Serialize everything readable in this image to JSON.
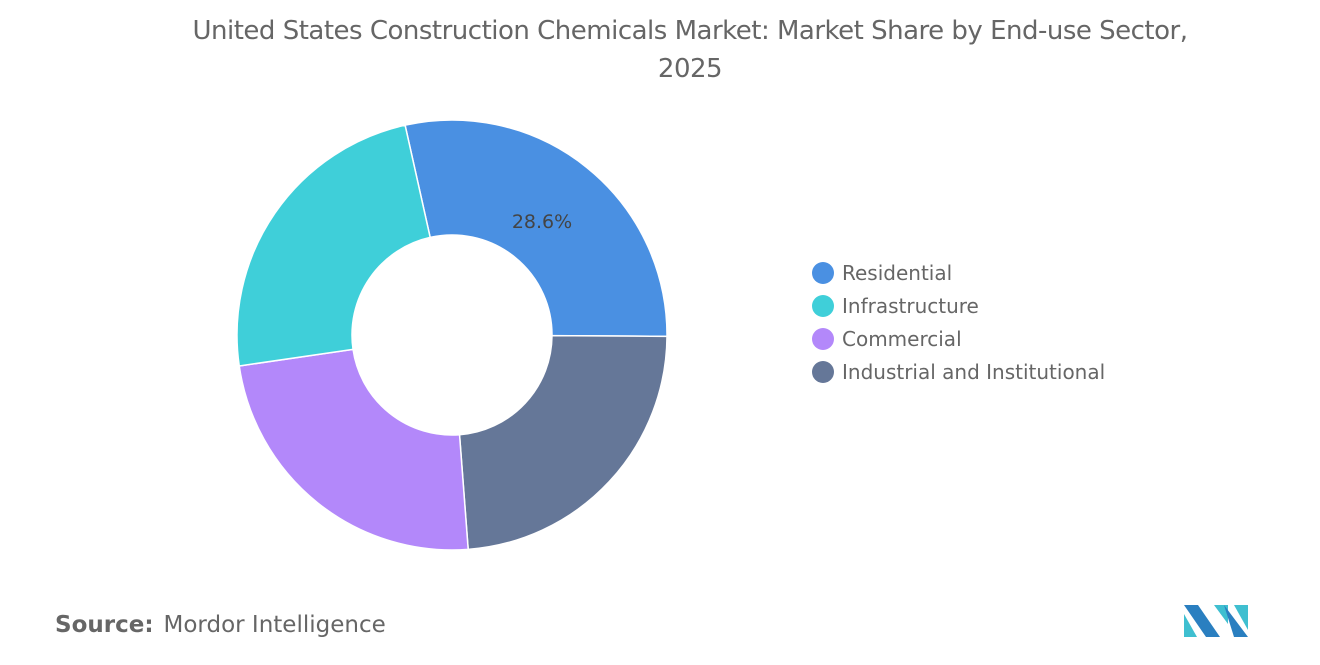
{
  "chart_data": {
    "type": "pie",
    "variant": "donut",
    "title": "United States Construction Chemicals Market: Market Share by End-use Sector, 2025",
    "categories": [
      "Residential",
      "Infrastructure",
      "Commercial",
      "Industrial and Institutional"
    ],
    "values": [
      28.6,
      23.8,
      23.9,
      23.7
    ],
    "unit": "%",
    "data_labels": [
      {
        "category": "Residential",
        "text": "28.6%"
      }
    ],
    "colors": {
      "Residential": "#4a90e2",
      "Infrastructure": "#3fcfd9",
      "Commercial": "#b388fa",
      "Industrial and Institutional": "#657798"
    },
    "legend_position": "right"
  },
  "source": {
    "label": "Source:",
    "value": "Mordor Intelligence"
  },
  "logo": {
    "icon": "mordor-intelligence-logo"
  }
}
